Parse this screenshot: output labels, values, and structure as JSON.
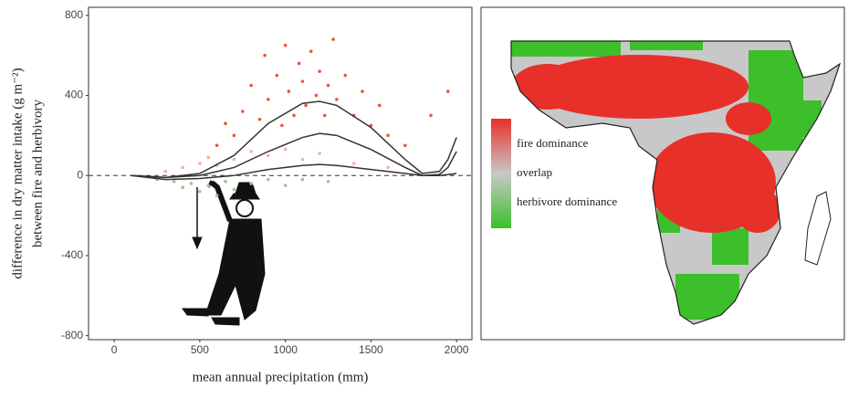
{
  "chart_data": {
    "type": "scatter",
    "x_label": "mean annual precipitation (mm)",
    "y_label_lines": [
      "difference in dry matter intake (g m⁻²)",
      "between fire and herbivory"
    ],
    "xlim": [
      -150,
      2090
    ],
    "ylim": [
      -820,
      840
    ],
    "xticks": [
      0,
      500,
      1000,
      1500,
      2000
    ],
    "yticks": [
      -800,
      -400,
      0,
      400,
      800
    ],
    "reference_line": 0,
    "series": [
      {
        "color": "#e8553c",
        "x": [
          600,
          650,
          700,
          750,
          800,
          850,
          880,
          900,
          950,
          980,
          1000,
          1020,
          1050,
          1080,
          1100,
          1120,
          1150,
          1180,
          1200,
          1230,
          1250,
          1280,
          1300,
          1350,
          1400,
          1450,
          1500,
          1550,
          1600,
          1700,
          1850,
          1950
        ],
        "values": [
          150,
          260,
          200,
          320,
          450,
          280,
          600,
          380,
          500,
          250,
          650,
          420,
          300,
          560,
          470,
          350,
          620,
          400,
          520,
          300,
          450,
          680,
          380,
          500,
          300,
          420,
          250,
          350,
          200,
          150,
          300,
          420
        ]
      },
      {
        "color": "#f4b0a0",
        "x": [
          300,
          400,
          500,
          550,
          600,
          700,
          800,
          900,
          1000,
          1100,
          1200,
          1400,
          1600
        ],
        "values": [
          20,
          40,
          60,
          90,
          50,
          80,
          120,
          100,
          130,
          80,
          110,
          60,
          40
        ]
      },
      {
        "color": "#9cc98a",
        "x": [
          250,
          350,
          400,
          450,
          500,
          550,
          600,
          650,
          700,
          800,
          900,
          1000,
          1100,
          1250
        ],
        "values": [
          -20,
          -30,
          -60,
          -40,
          -80,
          -50,
          -100,
          -30,
          -70,
          -40,
          -20,
          -50,
          -20,
          -30
        ]
      }
    ],
    "curves": [
      {
        "color": "#333333",
        "x": [
          100,
          300,
          500,
          700,
          900,
          1100,
          1200,
          1300,
          1500,
          1700,
          1800,
          1900,
          1950,
          2000
        ],
        "values": [
          0,
          -10,
          10,
          100,
          260,
          360,
          370,
          350,
          240,
          80,
          10,
          20,
          80,
          190
        ]
      },
      {
        "color": "#333333",
        "x": [
          100,
          300,
          500,
          700,
          900,
          1100,
          1200,
          1300,
          1500,
          1700,
          1800,
          1900,
          1950,
          2000
        ],
        "values": [
          0,
          -10,
          0,
          40,
          120,
          190,
          210,
          200,
          130,
          40,
          0,
          5,
          40,
          120
        ]
      },
      {
        "color": "#333333",
        "x": [
          100,
          300,
          500,
          700,
          900,
          1100,
          1200,
          1300,
          1500,
          1700,
          1800,
          1900,
          1950,
          2000
        ],
        "values": [
          0,
          -20,
          -15,
          0,
          30,
          50,
          55,
          50,
          30,
          10,
          0,
          0,
          5,
          10
        ]
      }
    ]
  },
  "map": {
    "legend": [
      "fire dominance",
      "overlap",
      "herbivore dominance"
    ],
    "colors": [
      "#e8302a",
      "#c8c8c8",
      "#3cbf2a"
    ]
  }
}
